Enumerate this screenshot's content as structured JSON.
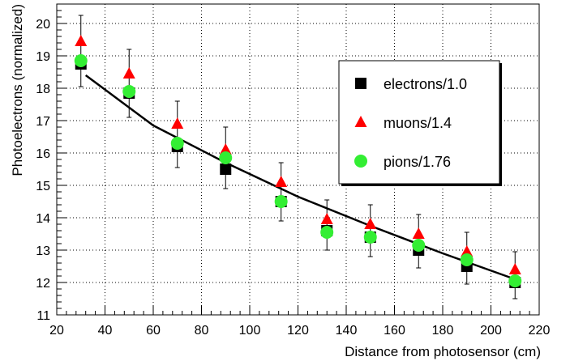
{
  "chart_data": {
    "type": "scatter",
    "xlabel": "Distance from photosensor (cm)",
    "ylabel": "Photoelectrons (normalized)",
    "xlim": [
      20,
      220
    ],
    "ylim": [
      11,
      20.6
    ],
    "x_ticks": [
      20,
      40,
      60,
      80,
      100,
      120,
      140,
      160,
      180,
      200,
      220
    ],
    "y_ticks": [
      11,
      12,
      13,
      14,
      15,
      16,
      17,
      18,
      19,
      20
    ],
    "grid": true,
    "legend_position": "top-right",
    "series": [
      {
        "name": "electrons/1.0",
        "marker": "square",
        "color": "#000000",
        "x": [
          30,
          50,
          70,
          90,
          113,
          132,
          150,
          170,
          190,
          210
        ],
        "y": [
          18.75,
          17.85,
          16.2,
          15.5,
          14.5,
          13.6,
          13.4,
          13.0,
          12.5,
          12.0
        ]
      },
      {
        "name": "muons/1.4",
        "marker": "triangle",
        "color": "#ff0000",
        "x": [
          30,
          50,
          70,
          90,
          113,
          132,
          150,
          170,
          190,
          210
        ],
        "y": [
          19.45,
          18.45,
          16.9,
          16.1,
          15.1,
          13.95,
          13.8,
          13.5,
          12.95,
          12.4
        ]
      },
      {
        "name": "pions/1.76",
        "marker": "circle",
        "color": "#33ee33",
        "x": [
          30,
          50,
          70,
          90,
          113,
          132,
          150,
          170,
          190,
          210
        ],
        "y": [
          18.85,
          17.9,
          16.3,
          15.85,
          14.5,
          13.55,
          13.4,
          13.15,
          12.7,
          12.05
        ]
      }
    ],
    "error_bars": {
      "x": [
        30,
        50,
        70,
        90,
        113,
        132,
        150,
        170,
        190,
        210
      ],
      "low": [
        18.05,
        17.1,
        15.55,
        14.9,
        13.9,
        13.0,
        12.8,
        12.45,
        11.95,
        11.5
      ],
      "high": [
        20.25,
        19.2,
        17.6,
        16.8,
        15.7,
        14.55,
        14.4,
        14.1,
        13.55,
        12.95
      ]
    },
    "fit_line": {
      "x": [
        32,
        60,
        90,
        120,
        150,
        180,
        210
      ],
      "y": [
        18.4,
        16.85,
        15.7,
        14.65,
        13.75,
        12.9,
        12.1
      ]
    }
  }
}
